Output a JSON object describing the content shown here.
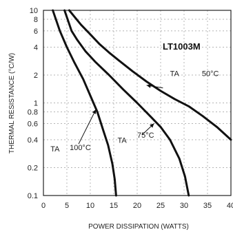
{
  "chart_data": {
    "type": "line",
    "title": "LT1003M",
    "xlabel": "POWER DISSIPATION (WATTS)",
    "ylabel": "THERMAL RESISTANCE (°C/W)",
    "xlim": [
      0,
      40
    ],
    "ylim": [
      0.1,
      10
    ],
    "y_scale": "log",
    "x_ticks": [
      "0",
      "5",
      "10",
      "15",
      "20",
      "25",
      "30",
      "35",
      "40"
    ],
    "x_tick_values": [
      0,
      5,
      10,
      15,
      20,
      25,
      30,
      35,
      40
    ],
    "y_ticks": [
      "0.1",
      "0.2",
      "0.4",
      "0.6",
      "0.8",
      "1",
      "2",
      "4",
      "6",
      "8",
      "10"
    ],
    "y_tick_values": [
      0.1,
      0.2,
      0.4,
      0.6,
      0.8,
      1,
      2,
      4,
      6,
      8,
      10
    ],
    "grid": true,
    "series": [
      {
        "label_text": "100°C",
        "points": [
          [
            2.0,
            10
          ],
          [
            3.5,
            6
          ],
          [
            5.0,
            4
          ],
          [
            6.5,
            2.8
          ],
          [
            8.5,
            1.8
          ],
          [
            10.0,
            1.2
          ],
          [
            11.5,
            0.8
          ],
          [
            12.8,
            0.5
          ],
          [
            13.8,
            0.35
          ],
          [
            14.7,
            0.22
          ],
          [
            15.2,
            0.15
          ],
          [
            15.5,
            0.1
          ]
        ]
      },
      {
        "label_text": "75°C",
        "points": [
          [
            4.5,
            10
          ],
          [
            6.0,
            6
          ],
          [
            7.2,
            4.8
          ],
          [
            9.0,
            3.6
          ],
          [
            11.0,
            2.8
          ],
          [
            14.0,
            2.0
          ],
          [
            17.0,
            1.4
          ],
          [
            20.0,
            1.0
          ],
          [
            23.0,
            0.7
          ],
          [
            25.0,
            0.55
          ],
          [
            27.0,
            0.4
          ],
          [
            29.0,
            0.25
          ],
          [
            30.2,
            0.16
          ],
          [
            31.0,
            0.1
          ]
        ]
      },
      {
        "label_text": "50°C",
        "points": [
          [
            5.5,
            10
          ],
          [
            8.0,
            7
          ],
          [
            10.0,
            5.5
          ],
          [
            12.0,
            4.3
          ],
          [
            14.0,
            3.5
          ],
          [
            16.0,
            2.9
          ],
          [
            19.0,
            2.2
          ],
          [
            22.0,
            1.7
          ],
          [
            25.0,
            1.35
          ],
          [
            28.0,
            1.1
          ],
          [
            31.0,
            0.92
          ],
          [
            34.0,
            0.72
          ],
          [
            37.0,
            0.55
          ],
          [
            40.0,
            0.4
          ]
        ]
      }
    ],
    "annotations": [
      {
        "text": "TA",
        "x": 1.5,
        "y": 0.3
      },
      {
        "text": "100°C",
        "x": 5.6,
        "y": 0.31
      },
      {
        "text": "TA",
        "x": 15.8,
        "y": 0.37
      },
      {
        "text": "75°C",
        "x": 20.0,
        "y": 0.42
      },
      {
        "text": "TA",
        "x": 27.0,
        "y": 1.95
      },
      {
        "text": "50°C",
        "x": 33.8,
        "y": 1.95
      }
    ]
  }
}
